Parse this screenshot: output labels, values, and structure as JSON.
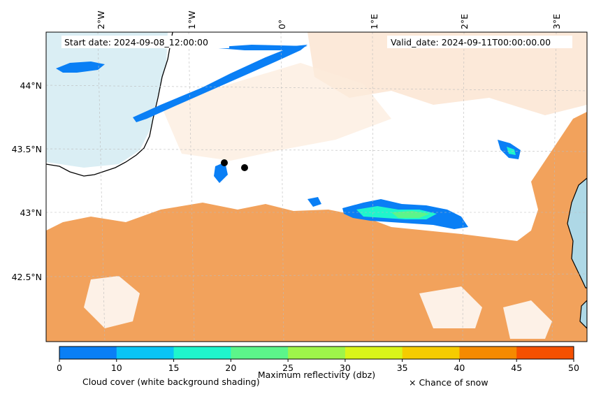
{
  "header": {
    "start_date": "Start date: 2024-09-08_12:00:00",
    "valid_date": "Valid_date: 2024-09-11T00:00:00.00"
  },
  "axes": {
    "lon_labels": [
      "2°W",
      "1°W",
      "0°",
      "1°E",
      "2°E",
      "3°E"
    ],
    "lat_labels": [
      "44°N",
      "43.5°N",
      "43°N",
      "42.5°N"
    ]
  },
  "colorbar": {
    "ticks": [
      "0",
      "10",
      "15",
      "20",
      "25",
      "30",
      "35",
      "40",
      "45",
      "50"
    ],
    "colors": [
      "#0a7ff5",
      "#0ac4f5",
      "#1ff5cc",
      "#5cf58a",
      "#9ef54a",
      "#d9f51a",
      "#f5cc00",
      "#f58a00",
      "#f55000"
    ],
    "label_left": "Cloud cover (white background shading)",
    "label_center": "Maximum reflectivity (dbz)",
    "label_right": "× Chance of snow"
  },
  "colors": {
    "terrain_orange": "#f2a25c",
    "sea_blue": "#aed8e6",
    "radar_blue": "#0a7ff5",
    "coastline": "#000000"
  }
}
